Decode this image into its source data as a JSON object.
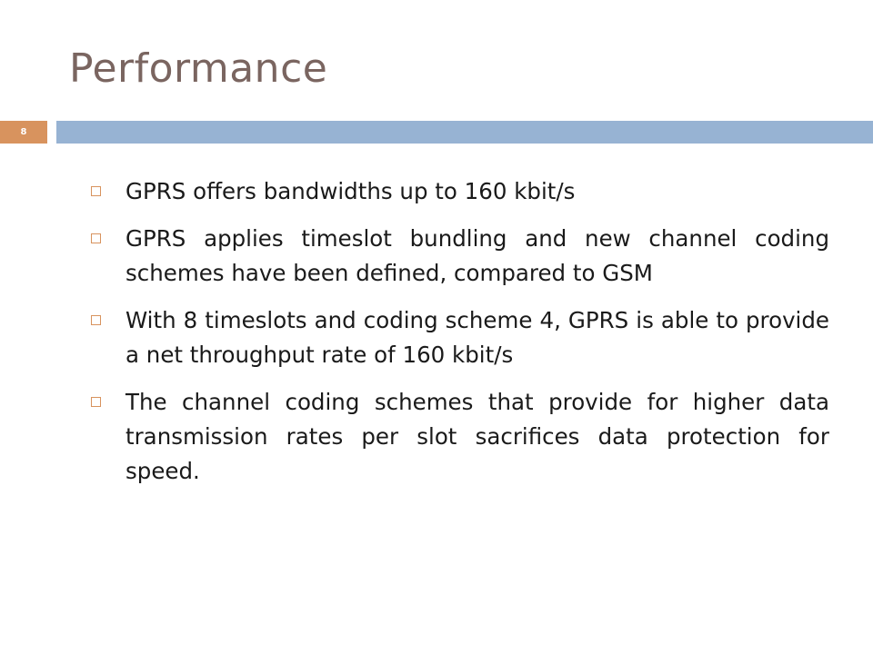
{
  "slide": {
    "title": "Performance",
    "page_number": "8",
    "bullets": [
      "GPRS offers bandwidths up to 160 kbit/s",
      "GPRS applies timeslot bundling and new channel coding schemes have been defined, compared to GSM",
      "With 8 timeslots and coding scheme 4, GPRS is able to provide a net throughput rate of 160 kbit/s",
      "The channel coding schemes that provide for higher data transmission rates per slot sacrifices data protection for speed."
    ]
  },
  "colors": {
    "title": "#7a6560",
    "accent_orange": "#d8935e",
    "accent_blue": "#97b3d3",
    "body_text": "#1a1a1a"
  }
}
